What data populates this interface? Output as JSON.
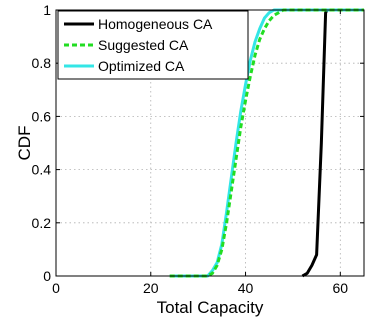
{
  "chart_data": {
    "type": "line",
    "xlabel": "Total Capacity",
    "ylabel": "CDF",
    "xlim": [
      0,
      65
    ],
    "ylim": [
      0,
      1
    ],
    "x_ticks": [
      0,
      20,
      40,
      60
    ],
    "y_ticks": [
      0,
      0.2,
      0.4,
      0.6,
      0.8,
      1
    ],
    "x_tick_labels": [
      "0",
      "20",
      "40",
      "60"
    ],
    "y_tick_labels": [
      "0",
      "0.2",
      "0.4",
      "0.6",
      "0.8",
      "1"
    ],
    "grid": true,
    "legend_position": "top-left",
    "series": [
      {
        "name": "Homogeneous CA",
        "color": "#000000",
        "style": "solid",
        "points": [
          [
            52,
            0
          ],
          [
            53,
            0.01
          ],
          [
            54,
            0.04
          ],
          [
            55,
            0.08
          ],
          [
            56,
            0.5
          ],
          [
            56.9,
            0.99
          ],
          [
            57.2,
            1
          ],
          [
            65,
            1
          ]
        ]
      },
      {
        "name": "Suggested CA",
        "color": "#22dd22",
        "style": "dashed",
        "points": [
          [
            24,
            0
          ],
          [
            32,
            0
          ],
          [
            33,
            0.01
          ],
          [
            34,
            0.04
          ],
          [
            35,
            0.1
          ],
          [
            36,
            0.2
          ],
          [
            37,
            0.32
          ],
          [
            38,
            0.44
          ],
          [
            39,
            0.56
          ],
          [
            40,
            0.66
          ],
          [
            41,
            0.75
          ],
          [
            42,
            0.83
          ],
          [
            43,
            0.89
          ],
          [
            44,
            0.93
          ],
          [
            45,
            0.96
          ],
          [
            46,
            0.98
          ],
          [
            47,
            0.99
          ],
          [
            48,
            1
          ],
          [
            65,
            1
          ]
        ]
      },
      {
        "name": "Optimized CA",
        "color": "#33e6e6",
        "style": "solid",
        "points": [
          [
            24,
            0
          ],
          [
            32,
            0
          ],
          [
            33,
            0.02
          ],
          [
            34,
            0.05
          ],
          [
            35,
            0.12
          ],
          [
            36,
            0.24
          ],
          [
            37,
            0.37
          ],
          [
            38,
            0.5
          ],
          [
            39,
            0.62
          ],
          [
            40,
            0.72
          ],
          [
            41,
            0.81
          ],
          [
            42,
            0.88
          ],
          [
            43,
            0.93
          ],
          [
            44,
            0.97
          ],
          [
            45,
            0.99
          ],
          [
            46,
            1
          ],
          [
            65,
            1
          ]
        ]
      }
    ]
  }
}
